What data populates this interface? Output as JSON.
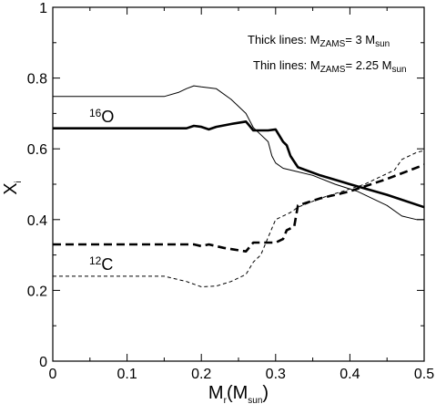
{
  "chart_data": {
    "type": "line",
    "xlabel": {
      "main": "M",
      "sub": "r",
      "rest": "(M",
      "sub2": "sun",
      "close": ")"
    },
    "ylabel": {
      "main": "X",
      "sub": "i"
    },
    "xlim": [
      0,
      0.5
    ],
    "ylim": [
      0,
      1
    ],
    "x_ticks": [
      "0",
      "0.1",
      "0.2",
      "0.3",
      "0.4",
      "0.5"
    ],
    "y_ticks": [
      "0",
      "0.2",
      "0.4",
      "0.6",
      "0.8",
      "1"
    ],
    "annotations": {
      "thick": {
        "prefix": "Thick lines:  M",
        "sub": "ZAMS",
        "mid": "= 3 M",
        "sub2": "sun"
      },
      "thin": {
        "prefix": "Thin lines:  M",
        "sub": "ZAMS",
        "mid": "= 2.25 M",
        "sub2": "sun"
      },
      "o16": {
        "sup": "16",
        "base": "O"
      },
      "c12": {
        "sup": "12",
        "base": "C"
      }
    },
    "series": [
      {
        "style": "thick-solid",
        "points": [
          [
            0,
            0.658
          ],
          [
            0.18,
            0.658
          ],
          [
            0.19,
            0.665
          ],
          [
            0.2,
            0.662
          ],
          [
            0.21,
            0.655
          ],
          [
            0.22,
            0.662
          ],
          [
            0.24,
            0.67
          ],
          [
            0.26,
            0.677
          ],
          [
            0.265,
            0.665
          ],
          [
            0.27,
            0.652
          ],
          [
            0.29,
            0.652
          ],
          [
            0.3,
            0.655
          ],
          [
            0.31,
            0.62
          ],
          [
            0.315,
            0.61
          ],
          [
            0.32,
            0.58
          ],
          [
            0.33,
            0.548
          ],
          [
            0.36,
            0.525
          ],
          [
            0.4,
            0.5
          ],
          [
            0.45,
            0.47
          ],
          [
            0.5,
            0.435
          ]
        ]
      },
      {
        "style": "thin-solid",
        "points": [
          [
            0,
            0.748
          ],
          [
            0.15,
            0.748
          ],
          [
            0.17,
            0.76
          ],
          [
            0.18,
            0.77
          ],
          [
            0.19,
            0.778
          ],
          [
            0.2,
            0.775
          ],
          [
            0.22,
            0.77
          ],
          [
            0.24,
            0.74
          ],
          [
            0.26,
            0.7
          ],
          [
            0.27,
            0.66
          ],
          [
            0.28,
            0.64
          ],
          [
            0.29,
            0.62
          ],
          [
            0.295,
            0.58
          ],
          [
            0.3,
            0.56
          ],
          [
            0.31,
            0.545
          ],
          [
            0.33,
            0.535
          ],
          [
            0.35,
            0.525
          ],
          [
            0.38,
            0.5
          ],
          [
            0.41,
            0.48
          ],
          [
            0.45,
            0.44
          ],
          [
            0.47,
            0.41
          ],
          [
            0.49,
            0.4
          ],
          [
            0.5,
            0.4
          ]
        ]
      },
      {
        "style": "thick-dashed",
        "points": [
          [
            0,
            0.33
          ],
          [
            0.19,
            0.33
          ],
          [
            0.2,
            0.325
          ],
          [
            0.21,
            0.33
          ],
          [
            0.23,
            0.32
          ],
          [
            0.26,
            0.31
          ],
          [
            0.27,
            0.335
          ],
          [
            0.3,
            0.335
          ],
          [
            0.31,
            0.345
          ],
          [
            0.315,
            0.37
          ],
          [
            0.325,
            0.38
          ],
          [
            0.33,
            0.44
          ],
          [
            0.36,
            0.46
          ],
          [
            0.4,
            0.48
          ],
          [
            0.45,
            0.515
          ],
          [
            0.5,
            0.555
          ]
        ]
      },
      {
        "style": "thin-dashed",
        "points": [
          [
            0,
            0.24
          ],
          [
            0.15,
            0.24
          ],
          [
            0.18,
            0.225
          ],
          [
            0.2,
            0.21
          ],
          [
            0.22,
            0.212
          ],
          [
            0.24,
            0.225
          ],
          [
            0.26,
            0.245
          ],
          [
            0.27,
            0.28
          ],
          [
            0.28,
            0.3
          ],
          [
            0.29,
            0.35
          ],
          [
            0.3,
            0.4
          ],
          [
            0.32,
            0.42
          ],
          [
            0.33,
            0.435
          ],
          [
            0.36,
            0.46
          ],
          [
            0.39,
            0.48
          ],
          [
            0.42,
            0.5
          ],
          [
            0.44,
            0.52
          ],
          [
            0.45,
            0.53
          ],
          [
            0.46,
            0.54
          ],
          [
            0.47,
            0.57
          ],
          [
            0.49,
            0.59
          ],
          [
            0.5,
            0.595
          ]
        ]
      }
    ]
  }
}
